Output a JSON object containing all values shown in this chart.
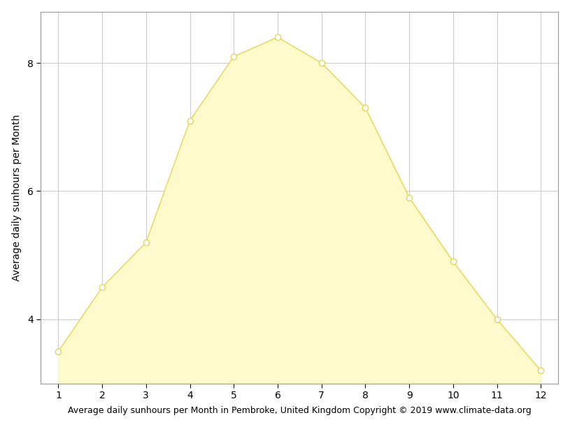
{
  "months": [
    1,
    2,
    3,
    4,
    5,
    6,
    7,
    8,
    9,
    10,
    11,
    12
  ],
  "sunhours": [
    3.5,
    4.5,
    5.2,
    7.1,
    8.1,
    8.4,
    8.0,
    7.3,
    5.9,
    4.9,
    4.0,
    3.2
  ],
  "fill_color": "#FEFACC",
  "line_color": "#E8D44D",
  "marker_face_color": "#FFFFFF",
  "marker_edge_color": "#E8D44D",
  "background_color": "#FFFFFF",
  "grid_color": "#CCCCCC",
  "xlabel": "Average daily sunhours per Month in Pembroke, United Kingdom Copyright © 2019 www.climate-data.org",
  "ylabel": "Average daily sunhours per Month",
  "xlim": [
    0.6,
    12.4
  ],
  "ylim": [
    3.0,
    8.8
  ],
  "xticks": [
    1,
    2,
    3,
    4,
    5,
    6,
    7,
    8,
    9,
    10,
    11,
    12
  ],
  "yticks": [
    4,
    6,
    8
  ],
  "xlabel_fontsize": 9.0,
  "ylabel_fontsize": 10,
  "tick_fontsize": 10,
  "marker_size": 6,
  "linewidth": 1.0
}
